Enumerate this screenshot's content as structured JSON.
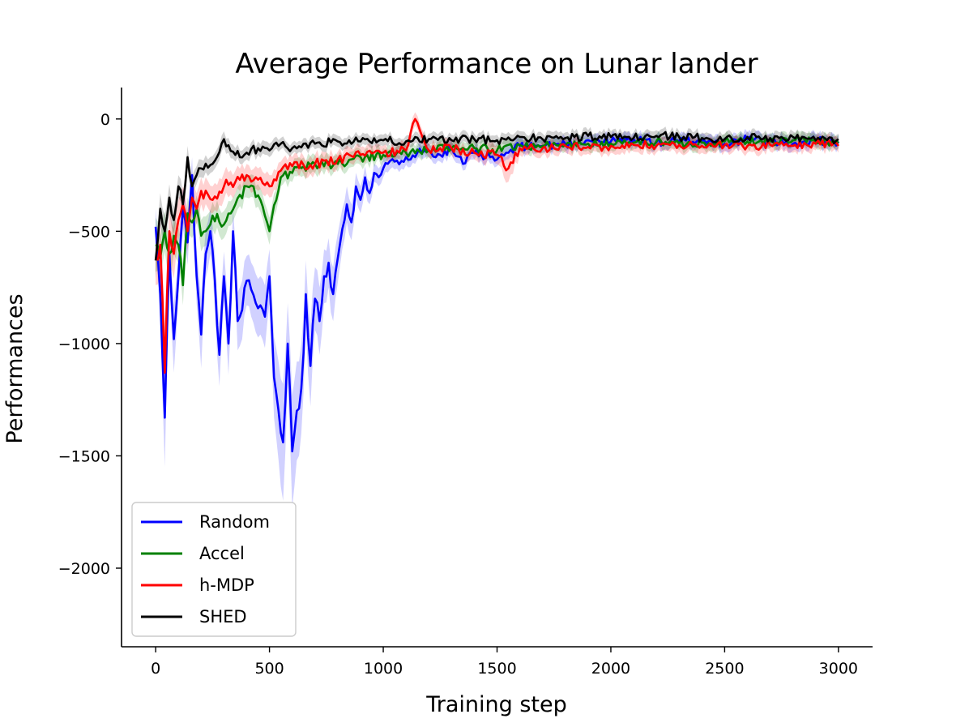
{
  "chart_data": {
    "type": "line",
    "title": "Average Performance on Lunar lander",
    "xlabel": "Training step",
    "ylabel": "Performances",
    "xlim": [
      -150,
      3150
    ],
    "ylim": [
      -2350,
      140
    ],
    "xticks": [
      0,
      500,
      1000,
      1500,
      2000,
      2500,
      3000
    ],
    "yticks": [
      0,
      -500,
      -1000,
      -1500,
      -2000
    ],
    "xtick_labels": [
      "0",
      "500",
      "1000",
      "1500",
      "2000",
      "2500",
      "3000"
    ],
    "ytick_labels": [
      "0",
      "−500",
      "−1000",
      "−1500",
      "−2000"
    ],
    "grid": false,
    "legend_position": "lower-left",
    "shaded_band": "mean ± std (light shading per series)",
    "series": [
      {
        "name": "Random",
        "color": "#0000ff",
        "x": [
          0,
          20,
          40,
          60,
          80,
          100,
          120,
          140,
          160,
          180,
          200,
          220,
          240,
          260,
          280,
          300,
          320,
          340,
          360,
          380,
          400,
          420,
          440,
          460,
          480,
          500,
          520,
          540,
          560,
          580,
          600,
          620,
          640,
          660,
          680,
          700,
          720,
          740,
          760,
          780,
          800,
          820,
          840,
          860,
          880,
          900,
          920,
          940,
          960,
          980,
          1000,
          1050,
          1100,
          1150,
          1200,
          1250,
          1300,
          1350,
          1400,
          1450,
          1500,
          1550,
          1600,
          1700,
          1800,
          1900,
          2000,
          2100,
          2200,
          2300,
          2400,
          2500,
          2600,
          2700,
          2800,
          2900,
          3000
        ],
        "values": [
          -480,
          -780,
          -1330,
          -600,
          -980,
          -700,
          -400,
          -550,
          -250,
          -700,
          -960,
          -600,
          -500,
          -720,
          -1050,
          -700,
          -1000,
          -500,
          -900,
          -850,
          -720,
          -760,
          -820,
          -830,
          -880,
          -700,
          -1150,
          -1300,
          -1440,
          -1000,
          -1480,
          -1300,
          -1200,
          -780,
          -1100,
          -800,
          -900,
          -700,
          -640,
          -780,
          -620,
          -490,
          -380,
          -460,
          -300,
          -360,
          -260,
          -330,
          -240,
          -260,
          -220,
          -190,
          -170,
          -150,
          -140,
          -160,
          -130,
          -200,
          -150,
          -170,
          -180,
          -150,
          -120,
          -120,
          -110,
          -95,
          -100,
          -90,
          -105,
          -100,
          -95,
          -110,
          -90,
          -100,
          -110,
          -95,
          -100
        ],
        "std": [
          80,
          120,
          220,
          120,
          150,
          100,
          90,
          100,
          80,
          120,
          150,
          110,
          100,
          120,
          140,
          110,
          140,
          100,
          130,
          130,
          110,
          120,
          130,
          130,
          140,
          120,
          180,
          220,
          260,
          180,
          250,
          220,
          200,
          150,
          180,
          140,
          150,
          120,
          110,
          120,
          110,
          90,
          80,
          80,
          60,
          60,
          50,
          50,
          40,
          40,
          40,
          35,
          35,
          30,
          30,
          30,
          30,
          30,
          30,
          30,
          30,
          30,
          30,
          30,
          30,
          30,
          30,
          30,
          30,
          30,
          30,
          30,
          30,
          30,
          30,
          30,
          30
        ]
      },
      {
        "name": "Accel",
        "color": "#008000",
        "x": [
          0,
          20,
          40,
          60,
          80,
          100,
          120,
          140,
          160,
          180,
          200,
          250,
          300,
          350,
          400,
          450,
          500,
          550,
          600,
          700,
          800,
          900,
          1000,
          1100,
          1200,
          1300,
          1400,
          1500,
          1600,
          1700,
          1800,
          1900,
          2000,
          2100,
          2200,
          2300,
          2400,
          2500,
          2600,
          2700,
          2800,
          2900,
          3000
        ],
        "values": [
          -560,
          -620,
          -500,
          -600,
          -520,
          -560,
          -740,
          -420,
          -460,
          -400,
          -520,
          -430,
          -470,
          -380,
          -300,
          -340,
          -500,
          -260,
          -240,
          -200,
          -200,
          -170,
          -160,
          -150,
          -140,
          -130,
          -130,
          -140,
          -115,
          -120,
          -115,
          -110,
          -110,
          -105,
          -100,
          -110,
          -105,
          -100,
          -100,
          -100,
          -95,
          -100,
          -100
        ],
        "std": [
          120,
          100,
          90,
          90,
          80,
          80,
          90,
          70,
          70,
          60,
          70,
          60,
          60,
          50,
          50,
          50,
          60,
          40,
          40,
          40,
          35,
          35,
          30,
          30,
          30,
          30,
          30,
          30,
          30,
          30,
          30,
          30,
          30,
          30,
          30,
          30,
          30,
          30,
          30,
          30,
          30,
          30,
          30
        ]
      },
      {
        "name": "h-MDP",
        "color": "#ff0000",
        "x": [
          0,
          20,
          40,
          60,
          80,
          100,
          120,
          140,
          160,
          180,
          200,
          250,
          300,
          350,
          400,
          450,
          500,
          550,
          600,
          700,
          800,
          900,
          1000,
          1100,
          1140,
          1200,
          1300,
          1400,
          1500,
          1550,
          1600,
          1700,
          1800,
          1900,
          2000,
          2100,
          2200,
          2300,
          2400,
          2500,
          2600,
          2700,
          2800,
          2900,
          3000
        ],
        "values": [
          -620,
          -560,
          -1130,
          -500,
          -600,
          -450,
          -380,
          -500,
          -350,
          -400,
          -320,
          -360,
          -300,
          -280,
          -250,
          -270,
          -300,
          -230,
          -210,
          -200,
          -180,
          -160,
          -150,
          -140,
          0,
          -140,
          -130,
          -150,
          -160,
          -220,
          -130,
          -130,
          -120,
          -125,
          -120,
          -115,
          -120,
          -115,
          -120,
          -115,
          -120,
          -115,
          -120,
          -110,
          -120
        ],
        "std": [
          120,
          100,
          200,
          100,
          110,
          90,
          80,
          90,
          70,
          70,
          60,
          60,
          60,
          50,
          50,
          50,
          50,
          40,
          40,
          40,
          35,
          35,
          30,
          30,
          30,
          30,
          30,
          30,
          40,
          60,
          30,
          30,
          30,
          30,
          30,
          30,
          30,
          30,
          30,
          30,
          30,
          30,
          30,
          30,
          30
        ]
      },
      {
        "name": "SHED",
        "color": "#000000",
        "x": [
          0,
          20,
          40,
          60,
          80,
          100,
          120,
          140,
          160,
          180,
          200,
          250,
          300,
          350,
          400,
          450,
          500,
          550,
          600,
          700,
          800,
          900,
          1000,
          1100,
          1200,
          1300,
          1400,
          1500,
          1600,
          1700,
          1800,
          1900,
          2000,
          2100,
          2200,
          2300,
          2400,
          2500,
          2600,
          2700,
          2800,
          2900,
          3000
        ],
        "values": [
          -630,
          -400,
          -500,
          -350,
          -450,
          -300,
          -380,
          -170,
          -300,
          -250,
          -220,
          -200,
          -90,
          -160,
          -150,
          -130,
          -140,
          -110,
          -130,
          -110,
          -100,
          -100,
          -95,
          -100,
          -90,
          -95,
          -90,
          -95,
          -80,
          -90,
          -85,
          -75,
          -80,
          -85,
          -75,
          -80,
          -85,
          -90,
          -80,
          -85,
          -80,
          -95,
          -90
        ],
        "std": [
          80,
          70,
          70,
          60,
          60,
          50,
          50,
          50,
          45,
          40,
          40,
          35,
          35,
          30,
          30,
          30,
          30,
          25,
          25,
          25,
          25,
          25,
          25,
          25,
          25,
          25,
          25,
          25,
          25,
          25,
          25,
          25,
          25,
          25,
          25,
          25,
          25,
          25,
          25,
          25,
          25,
          25,
          25
        ]
      }
    ]
  }
}
